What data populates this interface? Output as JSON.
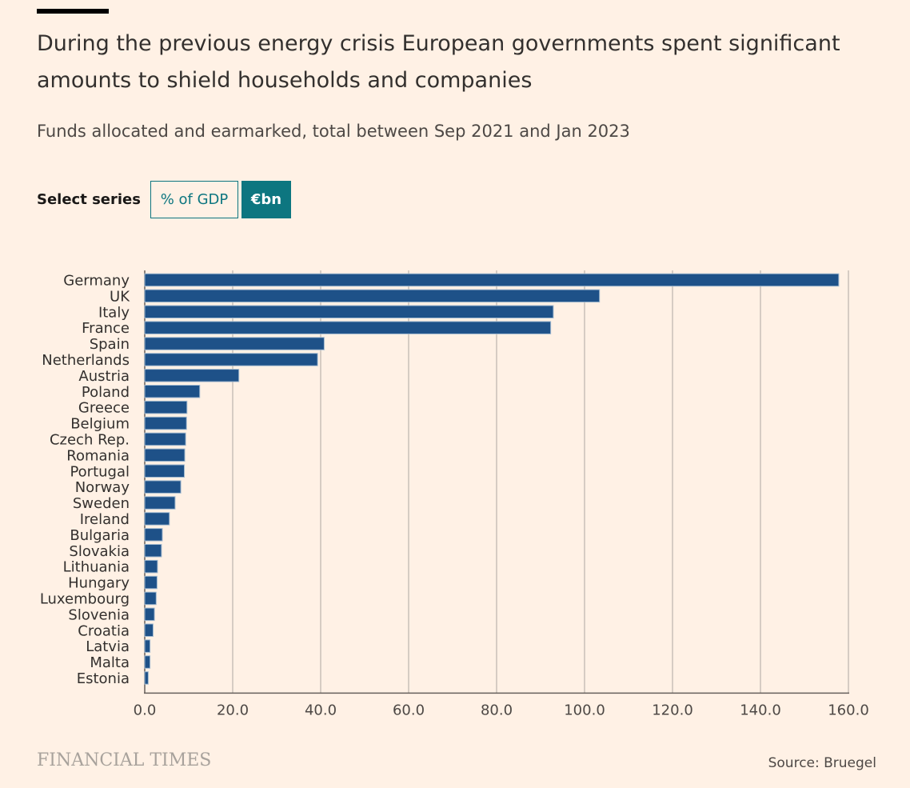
{
  "title": "During the previous energy crisis European governments spent significant amounts to shield households and companies",
  "subtitle": "Funds allocated and earmarked, total between Sep 2021 and Jan 2023",
  "series_selector": {
    "label": "Select series",
    "options": [
      "% of GDP",
      "€bn"
    ],
    "selected": "€bn"
  },
  "footer": {
    "logo": "FINANCIAL TIMES",
    "source": "Source: Bruegel"
  },
  "colors": {
    "background": "#fff1e5",
    "bar": "#1e5188",
    "bar_outline": "#9fb8cf",
    "accent": "#0d7680",
    "grid": "#c8c0b8"
  },
  "chart_data": {
    "type": "bar",
    "orientation": "horizontal",
    "categories": [
      "Germany",
      "UK",
      "Italy",
      "France",
      "Spain",
      "Netherlands",
      "Austria",
      "Poland",
      "Greece",
      "Belgium",
      "Czech Rep.",
      "Romania",
      "Portugal",
      "Norway",
      "Sweden",
      "Ireland",
      "Bulgaria",
      "Slovakia",
      "Lithuania",
      "Hungary",
      "Luxembourg",
      "Slovenia",
      "Croatia",
      "Latvia",
      "Malta",
      "Estonia"
    ],
    "values": [
      157.8,
      103.4,
      92.9,
      92.3,
      40.8,
      39.3,
      21.4,
      12.5,
      9.6,
      9.5,
      9.3,
      9.1,
      9.0,
      8.2,
      6.9,
      5.6,
      4.0,
      3.8,
      2.9,
      2.8,
      2.6,
      2.2,
      1.9,
      1.2,
      1.2,
      0.8
    ],
    "xlim": [
      0,
      160
    ],
    "xticks": [
      0,
      20,
      40,
      60,
      80,
      100,
      120,
      140,
      160
    ],
    "xtick_labels": [
      "0.0",
      "20.0",
      "40.0",
      "60.0",
      "80.0",
      "100.0",
      "120.0",
      "140.0",
      "160.0"
    ],
    "grid": true,
    "xlabel": "",
    "ylabel": ""
  }
}
